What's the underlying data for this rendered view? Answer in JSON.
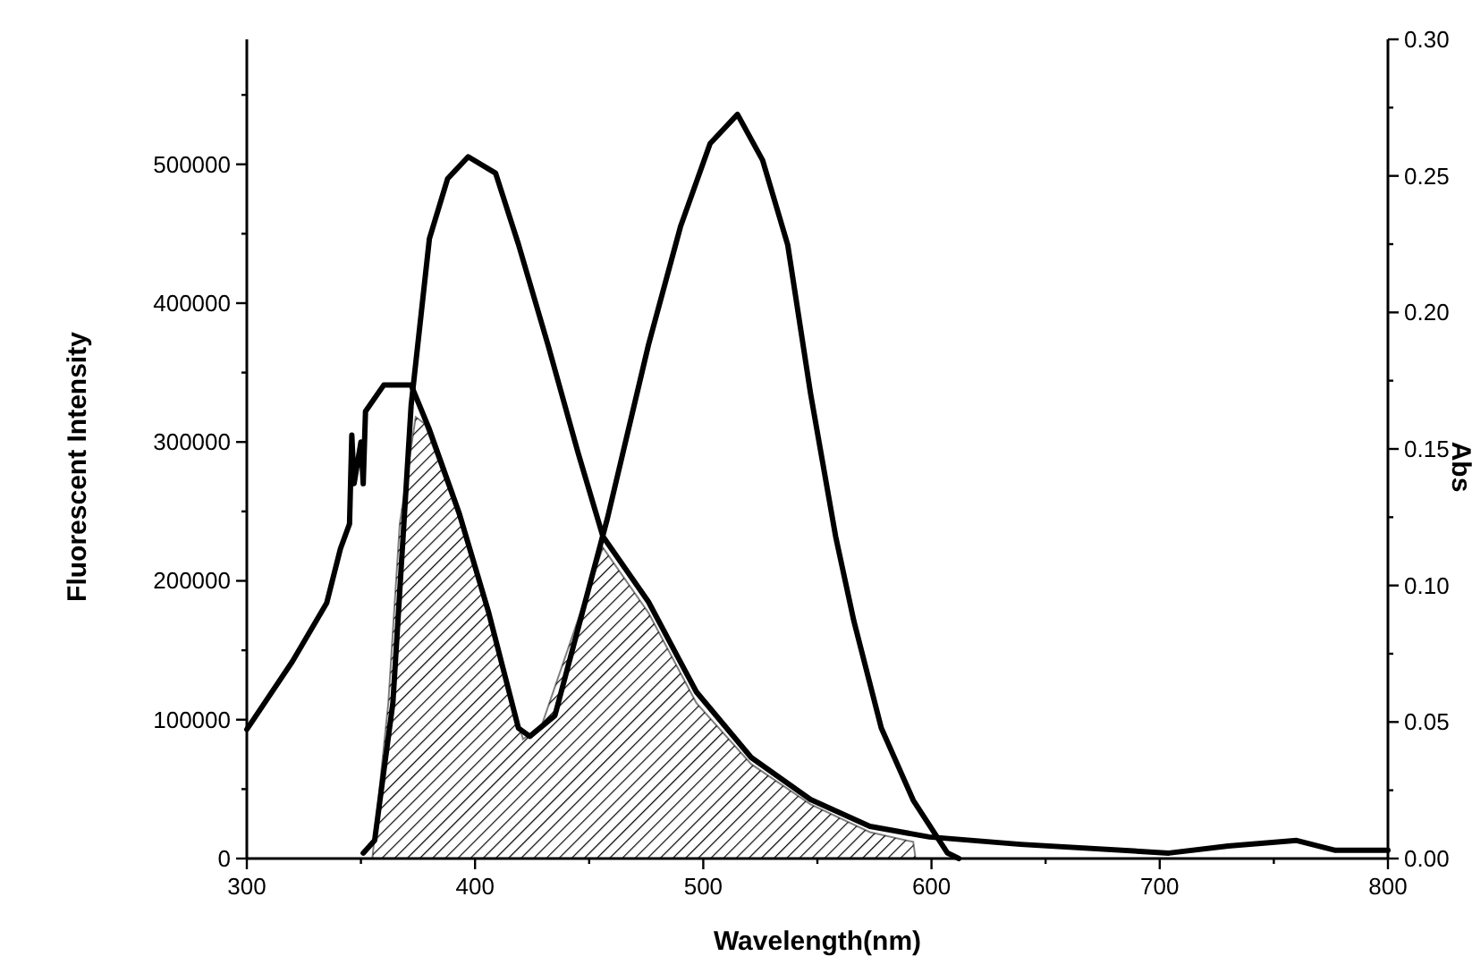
{
  "chart_data": {
    "type": "line",
    "xlabel": "Wavelength(nm)",
    "ylabel": "Fluorescent Intensity",
    "y2label": "Abs",
    "xlim": [
      300,
      800
    ],
    "xticks": [
      300,
      {
        "value": 350,
        "label": null
      },
      400,
      {
        "value": 450,
        "label": null
      },
      500,
      {
        "value": 550,
        "label": null
      },
      600,
      {
        "value": 650,
        "label": null
      },
      700,
      {
        "value": 750,
        "label": null
      },
      800
    ],
    "ylim": [
      0,
      590000
    ],
    "yticks": [
      0,
      {
        "value": 50000,
        "label": null
      },
      100000,
      {
        "value": 150000,
        "label": null
      },
      200000,
      {
        "value": 250000,
        "label": null
      },
      300000,
      {
        "value": 350000,
        "label": null
      },
      400000,
      {
        "value": 450000,
        "label": null
      },
      500000,
      {
        "value": 550000,
        "label": null
      }
    ],
    "y2lim": [
      0,
      0.3
    ],
    "y2ticks": [
      {
        "value": 0,
        "label": "0.00"
      },
      {
        "value": 0.025,
        "label": null
      },
      {
        "value": 0.05,
        "label": "0.05"
      },
      {
        "value": 0.075,
        "label": null
      },
      {
        "value": 0.1,
        "label": "0.10"
      },
      {
        "value": 0.125,
        "label": null
      },
      {
        "value": 0.15,
        "label": "0.15"
      },
      {
        "value": 0.175,
        "label": null
      },
      {
        "value": 0.2,
        "label": "0.20"
      },
      {
        "value": 0.225,
        "label": null
      },
      {
        "value": 0.25,
        "label": "0.25"
      },
      {
        "value": 0.275,
        "label": null
      },
      {
        "value": 0.3,
        "label": "0.30"
      }
    ],
    "series": [
      {
        "type": "area",
        "color": "#000000",
        "x": [
          355,
          362,
          367,
          374,
          378,
          393,
          406,
          421,
          429,
          456,
          476,
          497,
          521,
          547,
          573,
          592,
          593
        ],
        "values": [
          0,
          112000,
          241000,
          318000,
          313000,
          245000,
          174000,
          86000,
          95000,
          224000,
          177000,
          112000,
          68000,
          39000,
          19000,
          12000,
          0
        ]
      },
      {
        "color": "#000000",
        "x": [
          300,
          320,
          335,
          341,
          345,
          346,
          347,
          350,
          351,
          352,
          360,
          372,
          380,
          393,
          406,
          419,
          424,
          435,
          458,
          476,
          490,
          503,
          515,
          526,
          537,
          547,
          558,
          566,
          578,
          592,
          607,
          612
        ],
        "values": [
          93000,
          142000,
          184000,
          223000,
          241000,
          305000,
          270000,
          300000,
          270000,
          322000,
          341000,
          341000,
          309000,
          249000,
          177000,
          94000,
          88000,
          103000,
          245000,
          370000,
          455000,
          515000,
          536000,
          503000,
          442000,
          335000,
          232000,
          171000,
          94000,
          42000,
          4000,
          0
        ]
      },
      {
        "color": "#000000",
        "axis": "y2",
        "x": [
          351,
          356,
          364,
          372,
          380,
          388,
          397,
          409,
          419,
          432,
          445,
          456,
          476,
          497,
          521,
          547,
          573,
          599,
          639,
          704,
          730,
          760,
          777,
          800
        ],
        "values": [
          0.002,
          0.0066,
          0.057,
          0.166,
          0.227,
          0.249,
          0.257,
          0.251,
          0.225,
          0.188,
          0.149,
          0.118,
          0.094,
          0.061,
          0.037,
          0.0216,
          0.0118,
          0.0079,
          0.0052,
          0.002,
          0.0046,
          0.0066,
          0.003,
          0.003
        ]
      }
    ]
  }
}
